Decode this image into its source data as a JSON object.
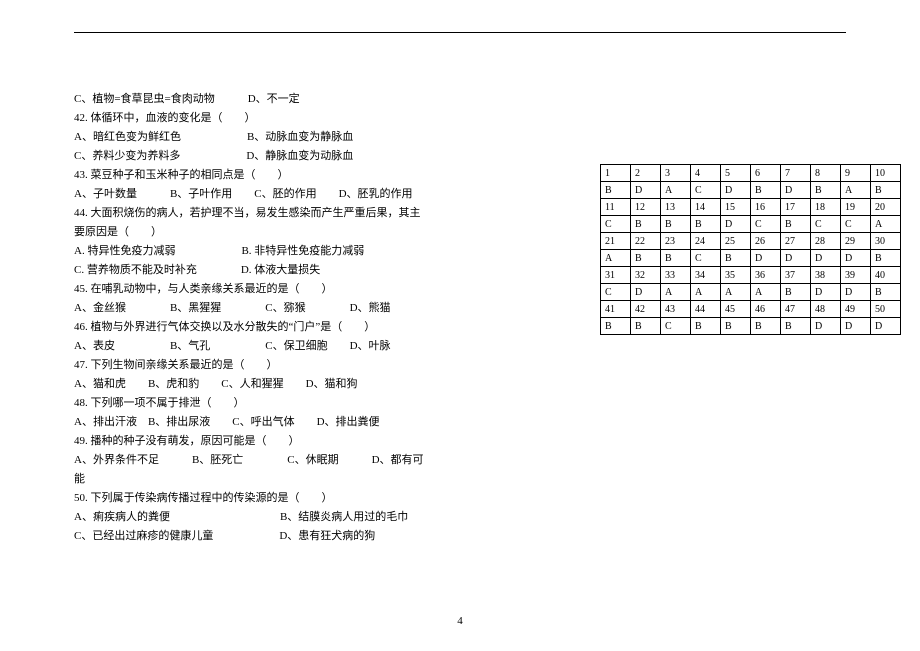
{
  "lines": [
    "C、植物=食草昆虫=食肉动物　　　D、不一定",
    "42. 体循环中，血液的变化是（　　）",
    "A、暗红色变为鲜红色　　　　　　B、动脉血变为静脉血",
    "C、养料少变为养料多　　　　　　D、静脉血变为动脉血",
    "43. 菜豆种子和玉米种子的相同点是（　　）",
    "A、子叶数量　　　B、子叶作用　　C、胚的作用　　D、胚乳的作用",
    "44. 大面积烧伤的病人，若护理不当，易发生感染而产生严重后果，其主",
    "要原因是（　　）",
    "A. 特异性免疫力减弱　　　　　　B. 非特异性免疫能力减弱",
    "C. 营养物质不能及时补充　　　　D. 体液大量损失",
    "45. 在哺乳动物中，与人类亲缘关系最近的是（　　）",
    "A、金丝猴　　　　B、黑猩猩　　　　C、猕猴　　　　D、熊猫",
    "46. 植物与外界进行气体交换以及水分散失的“门户”是（　　）",
    "A、表皮　　　　　B、气孔　　　　　C、保卫细胞　　D、叶脉",
    "47. 下列生物间亲缘关系最近的是（　　）",
    "A、猫和虎　　B、虎和豹　　C、人和猩猩　　D、猫和狗",
    "48. 下列哪一项不属于排泄（　　）",
    "A、排出汗液　B、排出尿液　　C、呼出气体　　D、排出粪便",
    "49. 播种的种子没有萌发，原因可能是（　　）",
    "A、外界条件不足　　　B、胚死亡　　　　C、休眠期　　　D、都有可",
    "能",
    "50. 下列属于传染病传播过程中的传染源的是（　　）",
    "A、痢疾病人的粪便　　　　　　　　　　B、结膜炎病人用过的毛巾",
    "C、已经出过麻疹的健康儿童　　　　　　D、患有狂犬病的狗"
  ],
  "table": [
    [
      "1",
      "2",
      "3",
      "4",
      "5",
      "6",
      "7",
      "8",
      "9",
      "10"
    ],
    [
      "B",
      "D",
      "A",
      "C",
      "D",
      "B",
      "D",
      "B",
      "A",
      "B"
    ],
    [
      "11",
      "12",
      "13",
      "14",
      "15",
      "16",
      "17",
      "18",
      "19",
      "20"
    ],
    [
      "C",
      "B",
      "B",
      "B",
      "D",
      "C",
      "B",
      "C",
      "C",
      "A"
    ],
    [
      "21",
      "22",
      "23",
      "24",
      "25",
      "26",
      "27",
      "28",
      "29",
      "30"
    ],
    [
      "A",
      "B",
      "B",
      "C",
      "B",
      "D",
      "D",
      "D",
      "D",
      "B"
    ],
    [
      "31",
      "32",
      "33",
      "34",
      "35",
      "36",
      "37",
      "38",
      "39",
      "40"
    ],
    [
      "C",
      "D",
      "A",
      "A",
      "A",
      "A",
      "B",
      "D",
      "D",
      "B"
    ],
    [
      "41",
      "42",
      "43",
      "44",
      "45",
      "46",
      "47",
      "48",
      "49",
      "50"
    ],
    [
      "B",
      "B",
      "C",
      "B",
      "B",
      "B",
      "B",
      "D",
      "D",
      "D"
    ]
  ],
  "pageNumber": "4"
}
